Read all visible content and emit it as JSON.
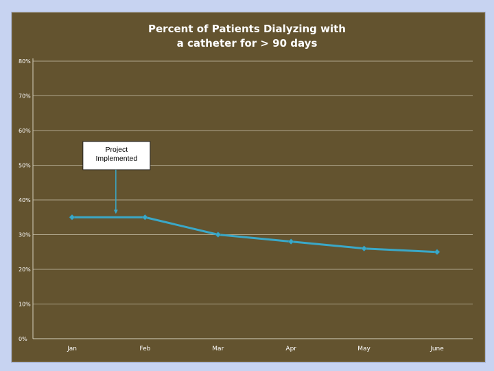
{
  "colors": {
    "page_background": "#c7d3f1",
    "chart_background": "#63532f",
    "series_color": "#3aa8c8",
    "text_color": "#ffffff",
    "callout_fill": "#ffffff"
  },
  "chart_data": {
    "type": "line",
    "title_lines": [
      "Percent of Patients Dialyzing with",
      "a catheter for > 90 days"
    ],
    "xlabel": "",
    "ylabel": "",
    "categories": [
      "Jan",
      "Feb",
      "Mar",
      "Apr",
      "May",
      "June"
    ],
    "series": [
      {
        "values": [
          35,
          35,
          30,
          28,
          26,
          25
        ]
      }
    ],
    "ylim": [
      0,
      80
    ],
    "y_ticks": [
      "0%",
      "10%",
      "20%",
      "30%",
      "40%",
      "50%",
      "60%",
      "70%",
      "80%"
    ],
    "grid": true,
    "legend": "none",
    "annotation": {
      "text_lines": [
        "Project",
        "Implemented"
      ],
      "points_to_value": 36,
      "between_categories": [
        "Jan",
        "Feb"
      ]
    }
  }
}
